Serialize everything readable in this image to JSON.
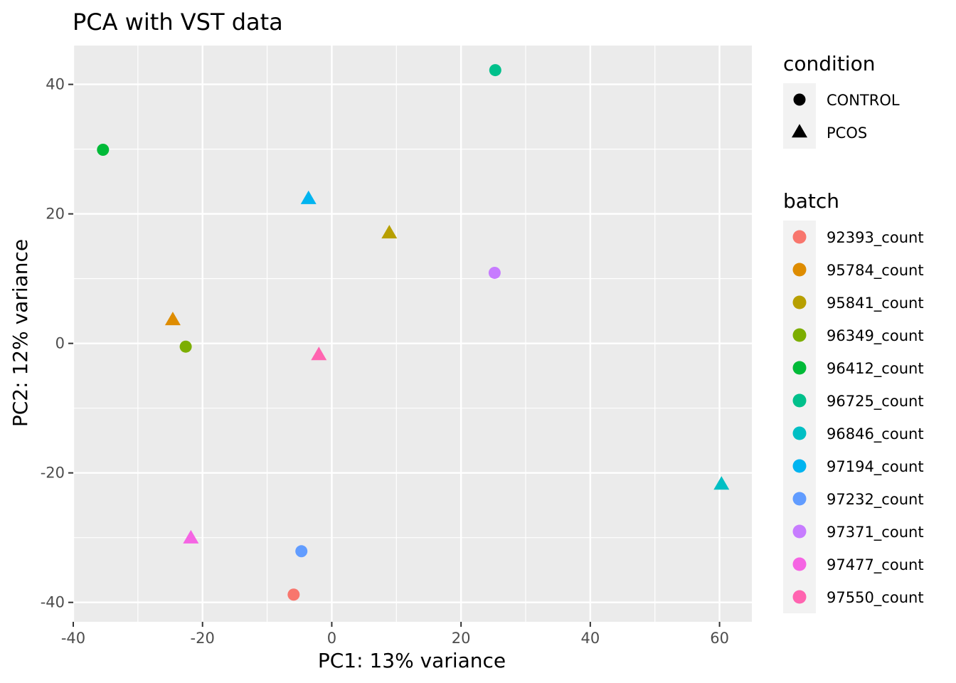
{
  "chart_data": {
    "type": "scatter",
    "title": "PCA with VST data",
    "xlabel": "PC1: 13% variance",
    "ylabel": "PC2: 12% variance",
    "xlim": [
      -40,
      65
    ],
    "ylim": [
      -43,
      46
    ],
    "x_ticks": [
      -40,
      -20,
      0,
      20,
      40,
      60
    ],
    "y_ticks": [
      -40,
      -20,
      0,
      20,
      40
    ],
    "x_tick_labels": [
      "-40",
      "-20",
      "0",
      "20",
      "40",
      "60"
    ],
    "y_tick_labels": [
      "-40",
      "-20",
      "0",
      "20",
      "40"
    ],
    "grid": true,
    "legend_placement": "right",
    "condition_legend": {
      "title": "condition",
      "entries": [
        {
          "label": "CONTROL",
          "shape": "circle"
        },
        {
          "label": "PCOS",
          "shape": "triangle"
        }
      ]
    },
    "batch_legend": {
      "title": "batch",
      "entries": [
        {
          "label": "92393_count",
          "color": "#F8766D"
        },
        {
          "label": "95784_count",
          "color": "#DE8C00"
        },
        {
          "label": "95841_count",
          "color": "#B79F00"
        },
        {
          "label": "96349_count",
          "color": "#7CAE00"
        },
        {
          "label": "96412_count",
          "color": "#00BA38"
        },
        {
          "label": "96725_count",
          "color": "#00C08B"
        },
        {
          "label": "96846_count",
          "color": "#00BFC4"
        },
        {
          "label": "97194_count",
          "color": "#00B4F0"
        },
        {
          "label": "97232_count",
          "color": "#619CFF"
        },
        {
          "label": "97371_count",
          "color": "#C77CFF"
        },
        {
          "label": "97477_count",
          "color": "#F564E3"
        },
        {
          "label": "97550_count",
          "color": "#FF64B0"
        }
      ]
    },
    "points": [
      {
        "x": -5.9,
        "y": -38.8,
        "batch": "92393_count",
        "condition": "CONTROL"
      },
      {
        "x": -24.6,
        "y": 3.6,
        "batch": "95784_count",
        "condition": "PCOS"
      },
      {
        "x": 8.9,
        "y": 17.0,
        "batch": "95841_count",
        "condition": "PCOS"
      },
      {
        "x": -22.6,
        "y": -0.5,
        "batch": "96349_count",
        "condition": "CONTROL"
      },
      {
        "x": -35.4,
        "y": 29.9,
        "batch": "96412_count",
        "condition": "CONTROL"
      },
      {
        "x": 25.3,
        "y": 42.2,
        "batch": "96725_count",
        "condition": "CONTROL"
      },
      {
        "x": 60.3,
        "y": -21.8,
        "batch": "96846_count",
        "condition": "PCOS"
      },
      {
        "x": -3.6,
        "y": 22.3,
        "batch": "97194_count",
        "condition": "PCOS"
      },
      {
        "x": -4.7,
        "y": -32.1,
        "batch": "97232_count",
        "condition": "CONTROL"
      },
      {
        "x": 25.2,
        "y": 10.9,
        "batch": "97371_count",
        "condition": "CONTROL"
      },
      {
        "x": -21.8,
        "y": -30.1,
        "batch": "97477_count",
        "condition": "PCOS"
      },
      {
        "x": -2.0,
        "y": -1.8,
        "batch": "97550_count",
        "condition": "PCOS"
      }
    ]
  },
  "colors": {
    "panel_bg": "#EBEBEB",
    "grid": "#FFFFFF",
    "legend_key_bg": "#F2F2F2",
    "legend_shape": "#000000"
  }
}
